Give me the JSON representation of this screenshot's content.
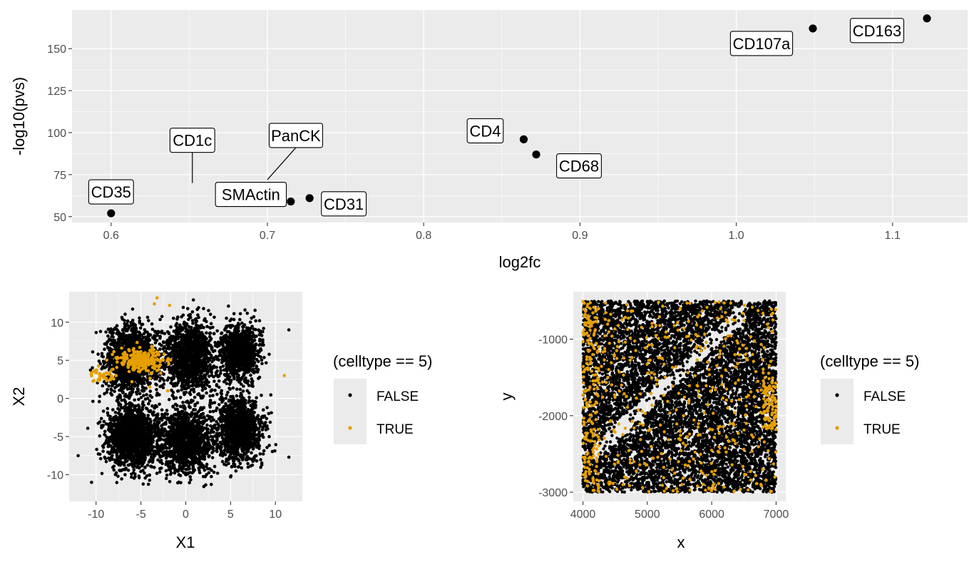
{
  "chart_data": [
    {
      "type": "scatter",
      "xlabel": "log2fc",
      "ylabel": "-log10(pvs)",
      "xlim": [
        0.575,
        1.148
      ],
      "ylim": [
        46.5,
        173
      ],
      "xticks": [
        0.6,
        0.7,
        0.8,
        0.9,
        1.0,
        1.1
      ],
      "xtick_labels": [
        "0.6",
        "0.7",
        "0.8",
        "0.9",
        "1.0",
        "1.1"
      ],
      "yticks": [
        50,
        75,
        100,
        125,
        150
      ],
      "ytick_labels": [
        "50",
        "75",
        "100",
        "125",
        "150"
      ],
      "grid": true,
      "point_color": "#000000",
      "points": [
        {
          "label": "CD35",
          "x": 0.6,
          "y": 52
        },
        {
          "label": "CD1c",
          "x": 0.652,
          "y": 70
        },
        {
          "label": "PanCK",
          "x": 0.7,
          "y": 72
        },
        {
          "label": "SMActin",
          "x": 0.715,
          "y": 59
        },
        {
          "label": "CD31",
          "x": 0.727,
          "y": 61
        },
        {
          "label": "CD4",
          "x": 0.864,
          "y": 96
        },
        {
          "label": "CD68",
          "x": 0.872,
          "y": 87
        },
        {
          "label": "CD107a",
          "x": 1.049,
          "y": 162
        },
        {
          "label": "CD163",
          "x": 1.122,
          "y": 168
        }
      ]
    },
    {
      "type": "scatter",
      "xlabel": "X1",
      "ylabel": "X2",
      "xlim": [
        -13,
        13
      ],
      "ylim": [
        -13.5,
        14
      ],
      "xticks": [
        -10,
        -5,
        0,
        5,
        10
      ],
      "xtick_labels": [
        "-10",
        "-5",
        "0",
        "5",
        "10"
      ],
      "yticks": [
        -10,
        -5,
        0,
        5,
        10
      ],
      "ytick_labels": [
        "-10",
        "-5",
        "0",
        "5",
        "10"
      ],
      "grid": true,
      "legend": {
        "title": "(celltype == 5)",
        "entries": [
          "FALSE",
          "TRUE"
        ],
        "position": "right"
      },
      "series": [
        {
          "name": "FALSE",
          "color": "#000000"
        },
        {
          "name": "TRUE",
          "color": "#E69F00"
        }
      ]
    },
    {
      "type": "scatter",
      "xlabel": "x",
      "ylabel": "y",
      "xlim": [
        3850,
        7150
      ],
      "ylim": [
        -3120,
        -380
      ],
      "xticks": [
        4000,
        5000,
        6000,
        7000
      ],
      "xtick_labels": [
        "4000",
        "5000",
        "6000",
        "7000"
      ],
      "yticks": [
        -1000,
        -2000,
        -3000
      ],
      "ytick_labels": [
        "-1000",
        "-2000",
        "-3000"
      ],
      "grid": true,
      "legend": {
        "title": "(celltype == 5)",
        "entries": [
          "FALSE",
          "TRUE"
        ],
        "position": "right"
      },
      "series": [
        {
          "name": "FALSE",
          "color": "#000000"
        },
        {
          "name": "TRUE",
          "color": "#E69F00"
        }
      ]
    }
  ]
}
